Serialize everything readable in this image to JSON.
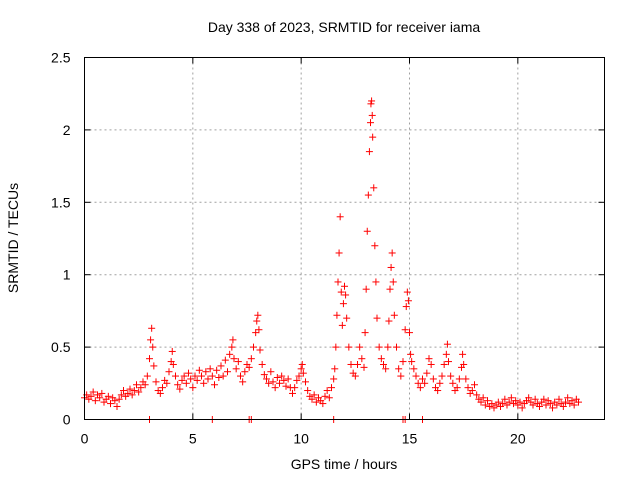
{
  "chart_data": {
    "type": "scatter",
    "title": "Day 338 of 2023, SRMTID for receiver iama",
    "xlabel": "GPS time / hours",
    "ylabel": "SRMTID / TECUs",
    "xlim": [
      0,
      24
    ],
    "ylim": [
      0,
      2.5
    ],
    "xticks": [
      0,
      5,
      10,
      15,
      20
    ],
    "xtick_labels": [
      "0",
      "5",
      "10",
      "15",
      "20"
    ],
    "yticks": [
      0,
      0.5,
      1,
      1.5,
      2,
      2.5
    ],
    "ytick_labels": [
      "0",
      "0.5",
      "1",
      "1.5",
      "2",
      "2.5"
    ],
    "grid": true,
    "marker": "+",
    "color": "#ff0000",
    "series": [
      {
        "name": "SRMTID",
        "points": [
          [
            0.0,
            0.15
          ],
          [
            0.1,
            0.17
          ],
          [
            0.2,
            0.14
          ],
          [
            0.3,
            0.16
          ],
          [
            0.4,
            0.19
          ],
          [
            0.5,
            0.13
          ],
          [
            0.6,
            0.17
          ],
          [
            0.7,
            0.15
          ],
          [
            0.8,
            0.18
          ],
          [
            0.9,
            0.12
          ],
          [
            1.0,
            0.14
          ],
          [
            1.1,
            0.16
          ],
          [
            1.2,
            0.11
          ],
          [
            1.3,
            0.15
          ],
          [
            1.4,
            0.13
          ],
          [
            1.5,
            0.09
          ],
          [
            1.6,
            0.14
          ],
          [
            1.7,
            0.17
          ],
          [
            1.8,
            0.2
          ],
          [
            1.9,
            0.16
          ],
          [
            2.0,
            0.18
          ],
          [
            2.1,
            0.21
          ],
          [
            2.2,
            0.17
          ],
          [
            2.3,
            0.2
          ],
          [
            2.4,
            0.24
          ],
          [
            2.5,
            0.19
          ],
          [
            2.6,
            0.22
          ],
          [
            2.7,
            0.26
          ],
          [
            2.8,
            0.24
          ],
          [
            2.9,
            0.3
          ],
          [
            3.0,
            0.42
          ],
          [
            3.05,
            0.55
          ],
          [
            3.1,
            0.63
          ],
          [
            3.15,
            0.5
          ],
          [
            3.2,
            0.37
          ],
          [
            3.3,
            0.26
          ],
          [
            3.4,
            0.2
          ],
          [
            3.5,
            0.18
          ],
          [
            3.6,
            0.22
          ],
          [
            3.7,
            0.27
          ],
          [
            3.8,
            0.25
          ],
          [
            3.9,
            0.33
          ],
          [
            4.0,
            0.4
          ],
          [
            4.05,
            0.47
          ],
          [
            4.1,
            0.38
          ],
          [
            4.2,
            0.3
          ],
          [
            4.3,
            0.24
          ],
          [
            4.4,
            0.21
          ],
          [
            4.5,
            0.27
          ],
          [
            4.6,
            0.3
          ],
          [
            4.7,
            0.25
          ],
          [
            4.8,
            0.32
          ],
          [
            4.9,
            0.28
          ],
          [
            5.0,
            0.22
          ],
          [
            5.1,
            0.3
          ],
          [
            5.2,
            0.27
          ],
          [
            5.3,
            0.34
          ],
          [
            5.4,
            0.3
          ],
          [
            5.5,
            0.25
          ],
          [
            5.6,
            0.33
          ],
          [
            5.7,
            0.28
          ],
          [
            5.8,
            0.35
          ],
          [
            5.9,
            0.3
          ],
          [
            6.0,
            0.24
          ],
          [
            6.1,
            0.34
          ],
          [
            6.2,
            0.29
          ],
          [
            6.3,
            0.37
          ],
          [
            6.4,
            0.3
          ],
          [
            6.5,
            0.41
          ],
          [
            6.6,
            0.33
          ],
          [
            6.7,
            0.45
          ],
          [
            6.8,
            0.5
          ],
          [
            6.85,
            0.55
          ],
          [
            6.9,
            0.42
          ],
          [
            7.0,
            0.35
          ],
          [
            7.1,
            0.4
          ],
          [
            7.2,
            0.3
          ],
          [
            7.3,
            0.26
          ],
          [
            7.4,
            0.33
          ],
          [
            7.5,
            0.38
          ],
          [
            7.6,
            0.36
          ],
          [
            7.7,
            0.42
          ],
          [
            7.8,
            0.5
          ],
          [
            7.9,
            0.6
          ],
          [
            7.95,
            0.68
          ],
          [
            8.0,
            0.72
          ],
          [
            8.05,
            0.62
          ],
          [
            8.1,
            0.48
          ],
          [
            8.2,
            0.38
          ],
          [
            8.3,
            0.31
          ],
          [
            8.4,
            0.28
          ],
          [
            8.5,
            0.25
          ],
          [
            8.6,
            0.33
          ],
          [
            8.7,
            0.26
          ],
          [
            8.8,
            0.22
          ],
          [
            8.9,
            0.29
          ],
          [
            9.0,
            0.25
          ],
          [
            9.1,
            0.3
          ],
          [
            9.2,
            0.27
          ],
          [
            9.3,
            0.23
          ],
          [
            9.4,
            0.28
          ],
          [
            9.5,
            0.22
          ],
          [
            9.6,
            0.18
          ],
          [
            9.7,
            0.22
          ],
          [
            9.8,
            0.27
          ],
          [
            9.9,
            0.3
          ],
          [
            10.0,
            0.35
          ],
          [
            10.05,
            0.38
          ],
          [
            10.1,
            0.32
          ],
          [
            10.2,
            0.26
          ],
          [
            10.3,
            0.2
          ],
          [
            10.4,
            0.16
          ],
          [
            10.5,
            0.14
          ],
          [
            10.6,
            0.17
          ],
          [
            10.7,
            0.12
          ],
          [
            10.8,
            0.15
          ],
          [
            10.9,
            0.13
          ],
          [
            11.0,
            0.11
          ],
          [
            11.1,
            0.16
          ],
          [
            11.2,
            0.2
          ],
          [
            11.3,
            0.15
          ],
          [
            11.4,
            0.22
          ],
          [
            11.5,
            0.28
          ],
          [
            11.55,
            0.35
          ],
          [
            11.6,
            0.5
          ],
          [
            11.65,
            0.72
          ],
          [
            11.7,
            0.95
          ],
          [
            11.75,
            1.15
          ],
          [
            11.8,
            1.4
          ],
          [
            11.85,
            0.88
          ],
          [
            11.9,
            0.65
          ],
          [
            11.95,
            0.8
          ],
          [
            12.0,
            0.92
          ],
          [
            12.05,
            0.86
          ],
          [
            12.1,
            0.7
          ],
          [
            12.2,
            0.5
          ],
          [
            12.3,
            0.38
          ],
          [
            12.4,
            0.32
          ],
          [
            12.5,
            0.3
          ],
          [
            12.6,
            0.38
          ],
          [
            12.7,
            0.5
          ],
          [
            12.8,
            0.42
          ],
          [
            12.9,
            0.36
          ],
          [
            12.95,
            0.6
          ],
          [
            13.0,
            0.9
          ],
          [
            13.05,
            1.3
          ],
          [
            13.1,
            1.55
          ],
          [
            13.15,
            1.85
          ],
          [
            13.2,
            2.05
          ],
          [
            13.22,
            2.18
          ],
          [
            13.25,
            2.2
          ],
          [
            13.28,
            2.1
          ],
          [
            13.3,
            1.95
          ],
          [
            13.35,
            1.6
          ],
          [
            13.4,
            1.2
          ],
          [
            13.45,
            0.95
          ],
          [
            13.5,
            0.7
          ],
          [
            13.6,
            0.5
          ],
          [
            13.7,
            0.42
          ],
          [
            13.8,
            0.38
          ],
          [
            13.9,
            0.35
          ],
          [
            14.0,
            0.5
          ],
          [
            14.05,
            0.68
          ],
          [
            14.1,
            0.9
          ],
          [
            14.15,
            1.05
          ],
          [
            14.2,
            1.15
          ],
          [
            14.25,
            0.95
          ],
          [
            14.3,
            0.72
          ],
          [
            14.4,
            0.5
          ],
          [
            14.5,
            0.35
          ],
          [
            14.6,
            0.3
          ],
          [
            14.7,
            0.4
          ],
          [
            14.8,
            0.62
          ],
          [
            14.85,
            0.78
          ],
          [
            14.9,
            0.88
          ],
          [
            14.95,
            0.82
          ],
          [
            15.0,
            0.6
          ],
          [
            15.05,
            0.45
          ],
          [
            15.1,
            0.4
          ],
          [
            15.2,
            0.35
          ],
          [
            15.3,
            0.3
          ],
          [
            15.4,
            0.25
          ],
          [
            15.5,
            0.22
          ],
          [
            15.6,
            0.28
          ],
          [
            15.7,
            0.25
          ],
          [
            15.8,
            0.32
          ],
          [
            15.9,
            0.42
          ],
          [
            16.0,
            0.38
          ],
          [
            16.1,
            0.28
          ],
          [
            16.2,
            0.22
          ],
          [
            16.3,
            0.2
          ],
          [
            16.4,
            0.25
          ],
          [
            16.5,
            0.3
          ],
          [
            16.6,
            0.38
          ],
          [
            16.7,
            0.45
          ],
          [
            16.75,
            0.52
          ],
          [
            16.8,
            0.4
          ],
          [
            16.9,
            0.3
          ],
          [
            17.0,
            0.25
          ],
          [
            17.1,
            0.2
          ],
          [
            17.2,
            0.22
          ],
          [
            17.3,
            0.28
          ],
          [
            17.4,
            0.36
          ],
          [
            17.45,
            0.45
          ],
          [
            17.5,
            0.38
          ],
          [
            17.6,
            0.28
          ],
          [
            17.7,
            0.22
          ],
          [
            17.8,
            0.18
          ],
          [
            17.9,
            0.2
          ],
          [
            18.0,
            0.24
          ],
          [
            18.1,
            0.17
          ],
          [
            18.2,
            0.14
          ],
          [
            18.3,
            0.12
          ],
          [
            18.4,
            0.15
          ],
          [
            18.5,
            0.1
          ],
          [
            18.6,
            0.13
          ],
          [
            18.7,
            0.09
          ],
          [
            18.8,
            0.11
          ],
          [
            18.9,
            0.08
          ],
          [
            19.0,
            0.1
          ],
          [
            19.1,
            0.12
          ],
          [
            19.2,
            0.09
          ],
          [
            19.3,
            0.11
          ],
          [
            19.4,
            0.14
          ],
          [
            19.5,
            0.1
          ],
          [
            19.6,
            0.12
          ],
          [
            19.7,
            0.15
          ],
          [
            19.8,
            0.11
          ],
          [
            19.9,
            0.13
          ],
          [
            20.0,
            0.1
          ],
          [
            20.1,
            0.12
          ],
          [
            20.2,
            0.08
          ],
          [
            20.3,
            0.11
          ],
          [
            20.4,
            0.13
          ],
          [
            20.5,
            0.15
          ],
          [
            20.6,
            0.12
          ],
          [
            20.7,
            0.1
          ],
          [
            20.8,
            0.14
          ],
          [
            20.9,
            0.11
          ],
          [
            21.0,
            0.09
          ],
          [
            21.1,
            0.12
          ],
          [
            21.2,
            0.14
          ],
          [
            21.3,
            0.1
          ],
          [
            21.4,
            0.13
          ],
          [
            21.5,
            0.11
          ],
          [
            21.6,
            0.08
          ],
          [
            21.7,
            0.12
          ],
          [
            21.8,
            0.1
          ],
          [
            21.9,
            0.14
          ],
          [
            22.0,
            0.11
          ],
          [
            22.1,
            0.09
          ],
          [
            22.2,
            0.12
          ],
          [
            22.3,
            0.15
          ],
          [
            22.4,
            0.11
          ],
          [
            22.5,
            0.13
          ],
          [
            22.6,
            0.1
          ],
          [
            22.7,
            0.14
          ],
          [
            22.8,
            0.12
          ],
          [
            3.0,
            0.0
          ],
          [
            5.9,
            0.0
          ],
          [
            7.6,
            0.0
          ],
          [
            7.7,
            0.0
          ],
          [
            11.5,
            0.0
          ],
          [
            14.7,
            0.0
          ],
          [
            14.8,
            0.0
          ],
          [
            15.6,
            0.0
          ]
        ]
      }
    ]
  }
}
